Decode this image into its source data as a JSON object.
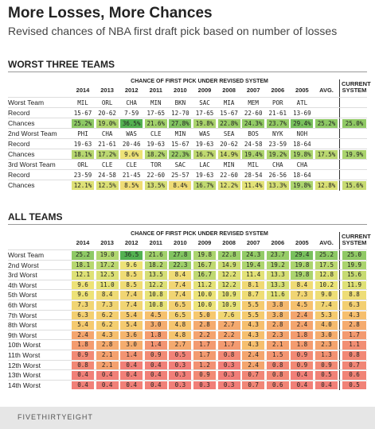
{
  "header": {
    "title": "More Losses, More Chances",
    "subtitle": "Revised chances of NBA first draft pick based on number of losses"
  },
  "sections": [
    {
      "title": "WORST THREE TEAMS",
      "table": {
        "caption": "CHANCE OF FIRST PICK UNDER REVISED SYSTEM",
        "columns": [
          "2014",
          "2013",
          "2012",
          "2011",
          "2010",
          "2009",
          "2008",
          "2007",
          "2006",
          "2005",
          "AVG.",
          "CURRENT SYSTEM"
        ],
        "rows": [
          {
            "label": "Worst Team",
            "cells": [
              "MIL",
              "ORL",
              "CHA",
              "MIN",
              "BKN",
              "SAC",
              "MIA",
              "MEM",
              "POR",
              "ATL"
            ]
          },
          {
            "label": "Record",
            "cells": [
              "15-67",
              "20-62",
              "7-59",
              "17-65",
              "12-70",
              "17-65",
              "15-67",
              "22-60",
              "21-61",
              "13-69"
            ]
          },
          {
            "label": "Chances",
            "cells": [
              "25.2%",
              "19.0%",
              "36.5%",
              "21.6%",
              "27.8%",
              "19.8%",
              "22.8%",
              "24.3%",
              "23.7%",
              "29.4%",
              "25.2%",
              "25.0%"
            ]
          },
          {
            "label": "2nd Worst Team",
            "cells": [
              "PHI",
              "CHA",
              "WAS",
              "CLE",
              "MIN",
              "WAS",
              "SEA",
              "BOS",
              "NYK",
              "NOH"
            ]
          },
          {
            "label": "Record",
            "cells": [
              "19-63",
              "21-61",
              "20-46",
              "19-63",
              "15-67",
              "19-63",
              "20-62",
              "24-58",
              "23-59",
              "18-64"
            ]
          },
          {
            "label": "Chances",
            "cells": [
              "18.1%",
              "17.2%",
              "9.6%",
              "18.2%",
              "22.3%",
              "16.7%",
              "14.9%",
              "19.4%",
              "19.2%",
              "19.8%",
              "17.5%",
              "19.9%"
            ]
          },
          {
            "label": "3rd Worst Team",
            "cells": [
              "ORL",
              "CLE",
              "CLE",
              "TOR",
              "SAC",
              "LAC",
              "MIN",
              "MIL",
              "CHA",
              "CHA"
            ]
          },
          {
            "label": "Record",
            "cells": [
              "23-59",
              "24-58",
              "21-45",
              "22-60",
              "25-57",
              "19-63",
              "22-60",
              "28-54",
              "26-56",
              "18-64"
            ]
          },
          {
            "label": "Chances",
            "cells": [
              "12.1%",
              "12.5%",
              "8.5%",
              "13.5%",
              "8.4%",
              "16.7%",
              "12.2%",
              "11.4%",
              "13.3%",
              "19.8%",
              "12.8%",
              "15.6%"
            ]
          }
        ]
      }
    },
    {
      "title": "ALL TEAMS",
      "table": {
        "caption": "CHANCE OF FIRST PICK UNDER REVISED SYSTEM",
        "columns": [
          "2014",
          "2013",
          "2012",
          "2011",
          "2010",
          "2009",
          "2008",
          "2007",
          "2006",
          "2005",
          "AVG.",
          "CURRENT SYSTEM"
        ],
        "rows": [
          {
            "label": "Worst Team",
            "cells": [
              "25.2",
              "19.0",
              "36.5",
              "21.6",
              "27.8",
              "19.8",
              "22.8",
              "24.3",
              "23.7",
              "29.4",
              "25.2",
              "25.0"
            ]
          },
          {
            "label": "2nd Worst",
            "cells": [
              "18.1",
              "17.2",
              "9.6",
              "18.2",
              "22.3",
              "16.7",
              "14.9",
              "19.4",
              "19.2",
              "19.8",
              "17.5",
              "19.9"
            ]
          },
          {
            "label": "3rd Worst",
            "cells": [
              "12.1",
              "12.5",
              "8.5",
              "13.5",
              "8.4",
              "16.7",
              "12.2",
              "11.4",
              "13.3",
              "19.8",
              "12.8",
              "15.6"
            ]
          },
          {
            "label": "4th Worst",
            "cells": [
              "9.6",
              "11.0",
              "8.5",
              "12.2",
              "7.4",
              "11.2",
              "12.2",
              "8.1",
              "13.3",
              "8.4",
              "10.2",
              "11.9"
            ]
          },
          {
            "label": "5th Worst",
            "cells": [
              "9.6",
              "8.4",
              "7.4",
              "10.8",
              "7.4",
              "10.0",
              "10.9",
              "8.7",
              "11.6",
              "7.3",
              "9.0",
              "8.8"
            ]
          },
          {
            "label": "6th Worst",
            "cells": [
              "7.3",
              "7.3",
              "7.4",
              "10.8",
              "6.5",
              "10.0",
              "10.9",
              "5.5",
              "3.8",
              "4.5",
              "7.4",
              "6.3"
            ]
          },
          {
            "label": "7th Worst",
            "cells": [
              "6.3",
              "6.2",
              "5.4",
              "4.5",
              "6.5",
              "5.0",
              "7.6",
              "5.5",
              "3.8",
              "2.4",
              "5.3",
              "4.3"
            ]
          },
          {
            "label": "8th Worst",
            "cells": [
              "5.4",
              "6.2",
              "5.4",
              "3.0",
              "4.8",
              "2.8",
              "2.7",
              "4.3",
              "2.8",
              "2.4",
              "4.0",
              "2.8"
            ]
          },
          {
            "label": "9th Worst",
            "cells": [
              "2.4",
              "4.3",
              "3.6",
              "1.8",
              "4.8",
              "2.2",
              "2.2",
              "4.3",
              "2.3",
              "1.8",
              "3.0",
              "1.7"
            ]
          },
          {
            "label": "10th Worst",
            "cells": [
              "1.8",
              "2.8",
              "3.0",
              "1.4",
              "2.7",
              "1.7",
              "1.7",
              "4.3",
              "2.1",
              "1.8",
              "2.3",
              "1.1"
            ]
          },
          {
            "label": "11th Worst",
            "cells": [
              "0.9",
              "2.1",
              "1.4",
              "0.9",
              "0.5",
              "1.7",
              "0.8",
              "2.4",
              "1.5",
              "0.9",
              "1.3",
              "0.8"
            ]
          },
          {
            "label": "12th Worst",
            "cells": [
              "0.8",
              "2.1",
              "0.4",
              "0.4",
              "0.3",
              "1.2",
              "0.3",
              "2.4",
              "0.8",
              "0.9",
              "0.9",
              "0.7"
            ]
          },
          {
            "label": "13th Worst",
            "cells": [
              "0.4",
              "0.4",
              "0.4",
              "0.4",
              "0.3",
              "0.9",
              "0.3",
              "0.7",
              "0.8",
              "0.4",
              "0.5",
              "0.6"
            ]
          },
          {
            "label": "14th Worst",
            "cells": [
              "0.4",
              "0.4",
              "0.4",
              "0.4",
              "0.3",
              "0.3",
              "0.3",
              "0.7",
              "0.6",
              "0.4",
              "0.4",
              "0.5"
            ]
          }
        ]
      }
    }
  ],
  "footer": {
    "brand": "FIVETHIRTYEIGHT"
  }
}
